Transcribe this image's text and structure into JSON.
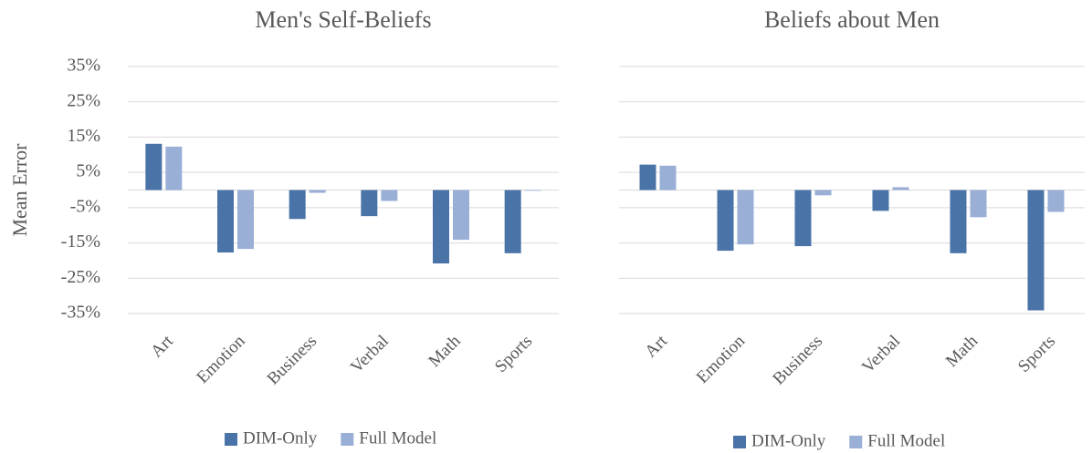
{
  "chart_data": [
    {
      "type": "bar",
      "title": "Men's Self-Beliefs",
      "y_label": "Mean Error",
      "categories": [
        "Art",
        "Emotion",
        "Business",
        "Verbal",
        "Math",
        "Sports"
      ],
      "series": [
        {
          "name": "DIM-Only",
          "color": "#4a73a8",
          "values": [
            13.1,
            -17.7,
            -8.2,
            -7.4,
            -20.8,
            -17.9
          ]
        },
        {
          "name": "Full Model",
          "color": "#9aafd6",
          "values": [
            12.3,
            -16.7,
            -0.8,
            -3.1,
            -14.1,
            -0.2
          ]
        }
      ],
      "ylim": [
        -35,
        35
      ],
      "yticks": [
        {
          "value": -35,
          "label": "-35%"
        },
        {
          "value": -25,
          "label": "-25%"
        },
        {
          "value": -15,
          "label": "-15%"
        },
        {
          "value": -5,
          "label": "-5%"
        },
        {
          "value": 5,
          "label": "5%"
        },
        {
          "value": 15,
          "label": "15%"
        },
        {
          "value": 25,
          "label": "25%"
        },
        {
          "value": 35,
          "label": "35%"
        }
      ],
      "grid": true,
      "legend": "bottom"
    },
    {
      "type": "bar",
      "title": "Beliefs about Men",
      "categories": [
        "Art",
        "Emotion",
        "Business",
        "Verbal",
        "Math",
        "Sports"
      ],
      "series": [
        {
          "name": "DIM-Only",
          "color": "#4a73a8",
          "values": [
            7.2,
            -17.2,
            -15.9,
            -5.9,
            -17.9,
            -34.1
          ]
        },
        {
          "name": "Full Model",
          "color": "#9aafd6",
          "values": [
            6.9,
            -15.4,
            -1.5,
            0.8,
            -7.7,
            -6.2
          ]
        }
      ],
      "ylim": [
        -35,
        35
      ],
      "yticks": [
        -35,
        -25,
        -15,
        -5,
        5,
        15,
        25,
        35
      ],
      "grid": true,
      "legend": "bottom"
    }
  ]
}
